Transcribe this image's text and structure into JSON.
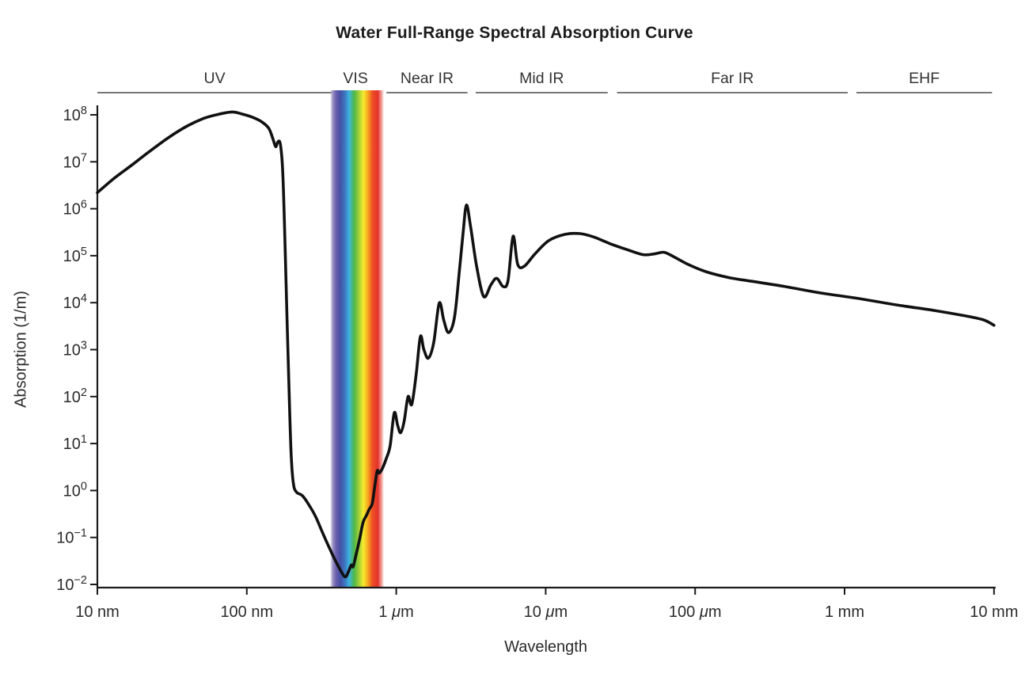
{
  "title": "Water Full-Range Spectral Absorption Curve",
  "chart_data": {
    "type": "line",
    "title": "Water Full-Range Spectral Absorption Curve",
    "xlabel": "Wavelength",
    "ylabel": "Absorption (1/m)",
    "x_scale": "log",
    "y_scale": "log",
    "xlim_m": [
      1e-08,
      0.01
    ],
    "y_exponent_range": [
      -2,
      8
    ],
    "grid": false,
    "x_ticks": [
      {
        "m": 1e-08,
        "label": "10 nm"
      },
      {
        "m": 1e-07,
        "label": "100 nm"
      },
      {
        "m": 1e-06,
        "label": "1 μm"
      },
      {
        "m": 1e-05,
        "label": "10 μm"
      },
      {
        "m": 0.0001,
        "label": "100 μm"
      },
      {
        "m": 0.001,
        "label": "1 mm"
      },
      {
        "m": 0.01,
        "label": "10 mm"
      }
    ],
    "y_tick_exponents": [
      -2,
      -1,
      0,
      1,
      2,
      3,
      4,
      5,
      6,
      7,
      8
    ],
    "y_tick_base": "10",
    "regions": [
      {
        "label": "UV",
        "from_m": 1e-08,
        "to_m": 3.7e-07,
        "underlined": true
      },
      {
        "label": "VIS",
        "from_m": 3.8e-07,
        "to_m": 7.5e-07,
        "underlined": false
      },
      {
        "label": "Near IR",
        "from_m": 8.6e-07,
        "to_m": 3e-06,
        "underlined": true
      },
      {
        "label": "Mid IR",
        "from_m": 3.4e-06,
        "to_m": 2.6e-05,
        "underlined": true
      },
      {
        "label": "Far IR",
        "from_m": 3e-05,
        "to_m": 0.00105,
        "underlined": true
      },
      {
        "label": "EHF",
        "from_m": 0.0012,
        "to_m": 0.0097,
        "underlined": true
      }
    ],
    "visible_band": {
      "from_m": 3.6e-07,
      "to_m": 8.4e-07,
      "gradient": [
        {
          "offset": 0.0,
          "color": "#a89cc8",
          "opacity": 0
        },
        {
          "offset": 0.05,
          "color": "#9186bd",
          "opacity": 0.9
        },
        {
          "offset": 0.11,
          "color": "#6b5fae",
          "opacity": 1
        },
        {
          "offset": 0.19,
          "color": "#4450a5",
          "opacity": 1
        },
        {
          "offset": 0.28,
          "color": "#3c7bc4",
          "opacity": 1
        },
        {
          "offset": 0.35,
          "color": "#3fb5e0",
          "opacity": 1
        },
        {
          "offset": 0.44,
          "color": "#4db848",
          "opacity": 1
        },
        {
          "offset": 0.53,
          "color": "#a6cf38",
          "opacity": 1
        },
        {
          "offset": 0.61,
          "color": "#f6ec2d",
          "opacity": 1
        },
        {
          "offset": 0.69,
          "color": "#f7a61f",
          "opacity": 1
        },
        {
          "offset": 0.77,
          "color": "#ee5226",
          "opacity": 1
        },
        {
          "offset": 0.87,
          "color": "#e4312a",
          "opacity": 1
        },
        {
          "offset": 0.94,
          "color": "#ef8379",
          "opacity": 0.8
        },
        {
          "offset": 1.0,
          "color": "#ffffff",
          "opacity": 0
        }
      ]
    },
    "series": [
      {
        "name": "water-absorption",
        "color": "#111111",
        "points": [
          [
            1e-08,
            2200000.0
          ],
          [
            1.3e-08,
            4500000.0
          ],
          [
            1.7e-08,
            8500000.0
          ],
          [
            2.2e-08,
            16000000.0
          ],
          [
            3e-08,
            33000000.0
          ],
          [
            4e-08,
            58000000.0
          ],
          [
            5.2e-08,
            85000000.0
          ],
          [
            6.5e-08,
            103000000.0
          ],
          [
            8e-08,
            115000000.0
          ],
          [
            9.5e-08,
            102000000.0
          ],
          [
            1.1e-07,
            88000000.0
          ],
          [
            1.25e-07,
            72000000.0
          ],
          [
            1.4e-07,
            52000000.0
          ],
          [
            1.5e-07,
            30000000.0
          ],
          [
            1.56e-07,
            21000000.0
          ],
          [
            1.62e-07,
            27000000.0
          ],
          [
            1.68e-07,
            23000000.0
          ],
          [
            1.74e-07,
            6000000.0
          ],
          [
            1.8e-07,
            200000.0
          ],
          [
            1.86e-07,
            4000.0
          ],
          [
            1.92e-07,
            120.0
          ],
          [
            1.98e-07,
            6.0
          ],
          [
            2.05e-07,
            1.4
          ],
          [
            2.15e-07,
            0.92
          ],
          [
            2.35e-07,
            0.78
          ],
          [
            2.6e-07,
            0.5
          ],
          [
            2.9e-07,
            0.27
          ],
          [
            3.2e-07,
            0.13
          ],
          [
            3.55e-07,
            0.062
          ],
          [
            3.9e-07,
            0.033
          ],
          [
            4.2e-07,
            0.021
          ],
          [
            4.55e-07,
            0.0145
          ],
          [
            4.8e-07,
            0.019
          ],
          [
            5e-07,
            0.026
          ],
          [
            5.15e-07,
            0.024
          ],
          [
            5.4e-07,
            0.045
          ],
          [
            5.7e-07,
            0.095
          ],
          [
            6e-07,
            0.21
          ],
          [
            6.3e-07,
            0.29
          ],
          [
            6.6e-07,
            0.4
          ],
          [
            6.9e-07,
            0.52
          ],
          [
            7.15e-07,
            1.1
          ],
          [
            7.45e-07,
            2.6
          ],
          [
            7.7e-07,
            2.35
          ],
          [
            8.1e-07,
            3.0
          ],
          [
            8.6e-07,
            4.9
          ],
          [
            9.1e-07,
            9.0
          ],
          [
            9.7e-07,
            45
          ],
          [
            1.02e-06,
            25
          ],
          [
            1.07e-06,
            17
          ],
          [
            1.13e-06,
            30
          ],
          [
            1.2e-06,
            100
          ],
          [
            1.27e-06,
            68
          ],
          [
            1.36e-06,
            300
          ],
          [
            1.45e-06,
            1900
          ],
          [
            1.53e-06,
            1000
          ],
          [
            1.64e-06,
            660
          ],
          [
            1.78e-06,
            1400
          ],
          [
            1.94e-06,
            9800
          ],
          [
            2.08e-06,
            4200
          ],
          [
            2.24e-06,
            2300
          ],
          [
            2.45e-06,
            4800
          ],
          [
            2.65e-06,
            50000.0
          ],
          [
            2.8e-06,
            300000.0
          ],
          [
            2.95e-06,
            1200000.0
          ],
          [
            3.15e-06,
            400000.0
          ],
          [
            3.45e-06,
            60000.0
          ],
          [
            3.85e-06,
            13500.0
          ],
          [
            4.3e-06,
            24000.0
          ],
          [
            4.7e-06,
            33000.0
          ],
          [
            5.2e-06,
            22000.0
          ],
          [
            5.6e-06,
            30000.0
          ],
          [
            6.05e-06,
            260000.0
          ],
          [
            6.5e-06,
            65000.0
          ],
          [
            7.2e-06,
            60000.0
          ],
          [
            8.5e-06,
            110000.0
          ],
          [
            1.05e-05,
            210000.0
          ],
          [
            1.35e-05,
            285000.0
          ],
          [
            1.7e-05,
            295000.0
          ],
          [
            2.1e-05,
            250000.0
          ],
          [
            2.7e-05,
            180000.0
          ],
          [
            3.5e-05,
            135000.0
          ],
          [
            4.5e-05,
            105000.0
          ],
          [
            5.4e-05,
            110000.0
          ],
          [
            6.2e-05,
            118000.0
          ],
          [
            7.2e-05,
            95000.0
          ],
          [
            9e-05,
            65000.0
          ],
          [
            0.00012,
            45000.0
          ],
          [
            0.00017,
            34000.0
          ],
          [
            0.00025,
            28000.0
          ],
          [
            0.0004,
            22000.0
          ],
          [
            0.0007,
            16000.0
          ],
          [
            0.0012,
            12500.0
          ],
          [
            0.0022,
            9000.0
          ],
          [
            0.004,
            6800.0
          ],
          [
            0.0065,
            5200.0
          ],
          [
            0.0085,
            4300.0
          ],
          [
            0.01,
            3300.0
          ]
        ]
      }
    ],
    "colors": {
      "axis": "#1a1a1a",
      "text": "#2b2b2b",
      "region_line": "#4a4a4a"
    }
  }
}
